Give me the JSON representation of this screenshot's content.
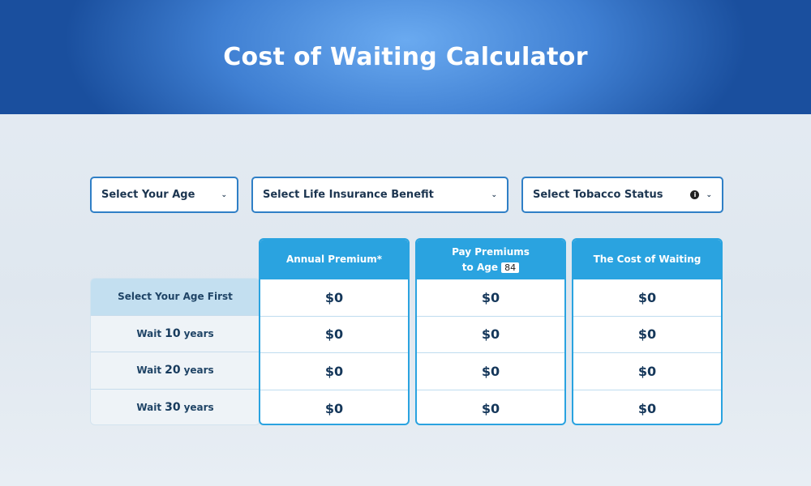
{
  "header": {
    "title": "Cost of Waiting Calculator"
  },
  "selects": {
    "age": {
      "value": "Select Your Age"
    },
    "benefit": {
      "value": "Select Life Insurance Benefit"
    },
    "tobacco": {
      "value": "Select Tobacco Status",
      "info_icon": "info-icon"
    }
  },
  "table": {
    "columns": [
      {
        "label": "Annual Premium*"
      },
      {
        "label_line1": "Pay Premiums",
        "label_line2": "to Age",
        "age_badge": "84"
      },
      {
        "label": "The Cost of Waiting"
      }
    ],
    "rows": [
      {
        "label": "Select Your Age First",
        "values": [
          "$0",
          "$0",
          "$0"
        ]
      },
      {
        "pre": "Wait",
        "num": "10",
        "post": "years",
        "values": [
          "$0",
          "$0",
          "$0"
        ]
      },
      {
        "pre": "Wait",
        "num": "20",
        "post": "years",
        "values": [
          "$0",
          "$0",
          "$0"
        ]
      },
      {
        "pre": "Wait",
        "num": "30",
        "post": "years",
        "values": [
          "$0",
          "$0",
          "$0"
        ]
      }
    ]
  },
  "colors": {
    "header_blue": "#3f7fd2",
    "column_header": "#2aa3e0",
    "select_border": "#2f7fc6"
  }
}
